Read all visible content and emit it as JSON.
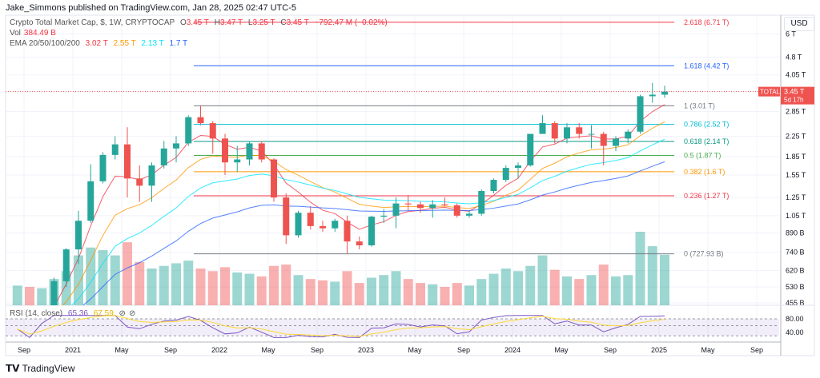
{
  "header": {
    "published": "Jake_Simmons published on TradingView.com, Jan 28, 2025 02:47 UTC-5"
  },
  "legend": {
    "symbol": "Crypto Total Market Cap, $, 1W, CRYPTOCAP",
    "open_label": "O",
    "open": "3.45 T",
    "high_label": "H",
    "high": "3.47 T",
    "low_label": "L",
    "low": "3.25 T",
    "close_label": "C",
    "close": "3.45 T",
    "change": "−792.47 M (−0.02%)",
    "vol_label": "Vol",
    "vol": "384.49 B",
    "ema_label": "EMA 20/50/100/200",
    "ema20": "3.02 T",
    "ema50": "2.55 T",
    "ema100": "2.13 T",
    "ema200": "1.7 T",
    "rsi_label": "RSI (14, close)",
    "rsi": "65.36",
    "rsi_ma": "67.59"
  },
  "price_axis": {
    "currency_button": "USD",
    "badge_label": "TOTAL",
    "badge_price": "3.45 T",
    "badge_countdown": "5d 17h"
  },
  "footer": {
    "logo_text": "TradingView"
  },
  "colors": {
    "up": "#26a69a",
    "down": "#ef5350",
    "ema20": "#f23645",
    "ema50": "#ff9800",
    "ema100": "#00e5ff",
    "ema200": "#2962ff",
    "rsi": "#7e57c2",
    "rsi_ma": "#fdd835"
  },
  "chart_data": {
    "type": "candlestick",
    "scale": "log",
    "grid": true,
    "y_ticks": [
      [
        "6 T",
        6000
      ],
      [
        "4.8 T",
        4800
      ],
      [
        "4.05 T",
        4050
      ],
      [
        "3.45 T",
        3450
      ],
      [
        "2.85 T",
        2850
      ],
      [
        "2.25 T",
        2250
      ],
      [
        "1.85 T",
        1850
      ],
      [
        "1.55 T",
        1550
      ],
      [
        "1.25 T",
        1250
      ],
      [
        "1.05 T",
        1050
      ],
      [
        "890 B",
        890
      ],
      [
        "740 B",
        740
      ],
      [
        "620 B",
        620
      ],
      [
        "530 B",
        530
      ],
      [
        "455 B",
        455
      ]
    ],
    "x_ticks": [
      "Sep",
      "2021",
      "May",
      "Sep",
      "2022",
      "May",
      "Sep",
      "2023",
      "May",
      "Sep",
      "2024",
      "May",
      "Sep",
      "2025",
      "May",
      "Sep"
    ],
    "fib_levels": [
      {
        "label": "2.618 (6.71 T)",
        "value": 6710,
        "color": "#f23645"
      },
      {
        "label": "1.618 (4.42 T)",
        "value": 4420,
        "color": "#2962ff"
      },
      {
        "label": "1 (3.01 T)",
        "value": 3010,
        "color": "#787b86"
      },
      {
        "label": "0.786 (2.52 T)",
        "value": 2520,
        "color": "#00bcd4"
      },
      {
        "label": "0.618 (2.14 T)",
        "value": 2140,
        "color": "#089981"
      },
      {
        "label": "0.5 (1.87 T)",
        "value": 1870,
        "color": "#4caf50"
      },
      {
        "label": "0.382 (1.6 T)",
        "value": 1600,
        "color": "#ff9800"
      },
      {
        "label": "0.236 (1.27 T)",
        "value": 1270,
        "color": "#f23645"
      },
      {
        "label": "0 (727.93 B)",
        "value": 727.93,
        "color": "#787b86"
      }
    ],
    "rsi_levels": [
      "80.00",
      "40.00"
    ],
    "months": [
      "2020-08",
      "2020-09",
      "2020-10",
      "2020-11",
      "2020-12",
      "2021-01",
      "2021-02",
      "2021-03",
      "2021-04",
      "2021-05",
      "2021-06",
      "2021-07",
      "2021-08",
      "2021-09",
      "2021-10",
      "2021-11",
      "2021-12",
      "2022-01",
      "2022-02",
      "2022-03",
      "2022-04",
      "2022-05",
      "2022-06",
      "2022-07",
      "2022-08",
      "2022-09",
      "2022-10",
      "2022-11",
      "2022-12",
      "2023-01",
      "2023-02",
      "2023-03",
      "2023-04",
      "2023-05",
      "2023-06",
      "2023-07",
      "2023-08",
      "2023-09",
      "2023-10",
      "2023-11",
      "2023-12",
      "2024-01",
      "2024-02",
      "2024-03",
      "2024-04",
      "2024-05",
      "2024-06",
      "2024-07",
      "2024-08",
      "2024-09",
      "2024-10",
      "2024-11",
      "2024-12",
      "2025-01"
    ],
    "ohlc_billions": [
      [
        340,
        400,
        330,
        380
      ],
      [
        380,
        390,
        320,
        340
      ],
      [
        340,
        400,
        330,
        400
      ],
      [
        400,
        580,
        400,
        560
      ],
      [
        560,
        770,
        530,
        760
      ],
      [
        760,
        1100,
        660,
        1000
      ],
      [
        1000,
        1720,
        980,
        1460
      ],
      [
        1460,
        1930,
        1430,
        1880
      ],
      [
        1880,
        2250,
        1800,
        2080
      ],
      [
        2080,
        2450,
        1250,
        1500
      ],
      [
        1500,
        1700,
        1200,
        1400
      ],
      [
        1400,
        1750,
        1200,
        1700
      ],
      [
        1700,
        2150,
        1650,
        2000
      ],
      [
        2000,
        2250,
        1750,
        2100
      ],
      [
        2100,
        2750,
        2050,
        2700
      ],
      [
        2700,
        3010,
        2500,
        2550
      ],
      [
        2550,
        2600,
        1900,
        2200
      ],
      [
        2200,
        2300,
        1550,
        1750
      ],
      [
        1750,
        2050,
        1600,
        1800
      ],
      [
        1800,
        2150,
        1700,
        2100
      ],
      [
        2100,
        2150,
        1750,
        1800
      ],
      [
        1800,
        1820,
        1200,
        1250
      ],
      [
        1250,
        1300,
        800,
        870
      ],
      [
        870,
        1100,
        850,
        1080
      ],
      [
        1080,
        1150,
        920,
        950
      ],
      [
        950,
        1000,
        900,
        930
      ],
      [
        930,
        1020,
        900,
        1000
      ],
      [
        1000,
        1050,
        730,
        820
      ],
      [
        820,
        860,
        760,
        790
      ],
      [
        790,
        1050,
        780,
        1040
      ],
      [
        1040,
        1120,
        980,
        1050
      ],
      [
        1050,
        1250,
        930,
        1180
      ],
      [
        1180,
        1280,
        1100,
        1170
      ],
      [
        1170,
        1200,
        1080,
        1130
      ],
      [
        1130,
        1220,
        1030,
        1170
      ],
      [
        1170,
        1250,
        1150,
        1160
      ],
      [
        1160,
        1180,
        1030,
        1050
      ],
      [
        1050,
        1100,
        1030,
        1070
      ],
      [
        1070,
        1350,
        1050,
        1330
      ],
      [
        1330,
        1500,
        1300,
        1480
      ],
      [
        1480,
        1700,
        1450,
        1660
      ],
      [
        1660,
        1750,
        1500,
        1700
      ],
      [
        1700,
        2300,
        1680,
        2300
      ],
      [
        2300,
        2750,
        2300,
        2550
      ],
      [
        2550,
        2600,
        2100,
        2200
      ],
      [
        2200,
        2550,
        2100,
        2450
      ],
      [
        2450,
        2550,
        2200,
        2300
      ],
      [
        2300,
        2500,
        2000,
        2300
      ],
      [
        2300,
        2350,
        1700,
        2050
      ],
      [
        2050,
        2250,
        1950,
        2200
      ],
      [
        2200,
        2400,
        2100,
        2350
      ],
      [
        2350,
        3350,
        2300,
        3300
      ],
      [
        3300,
        3750,
        3100,
        3350
      ],
      [
        3350,
        3650,
        3250,
        3450
      ]
    ],
    "volume_billions": [
      150,
      140,
      130,
      200,
      260,
      380,
      440,
      420,
      380,
      480,
      330,
      280,
      300,
      320,
      340,
      280,
      260,
      290,
      250,
      240,
      220,
      300,
      310,
      230,
      200,
      190,
      180,
      260,
      170,
      210,
      230,
      260,
      200,
      170,
      160,
      140,
      170,
      150,
      200,
      240,
      280,
      260,
      300,
      380,
      270,
      220,
      200,
      230,
      310,
      220,
      230,
      560,
      450,
      384.49
    ]
  }
}
